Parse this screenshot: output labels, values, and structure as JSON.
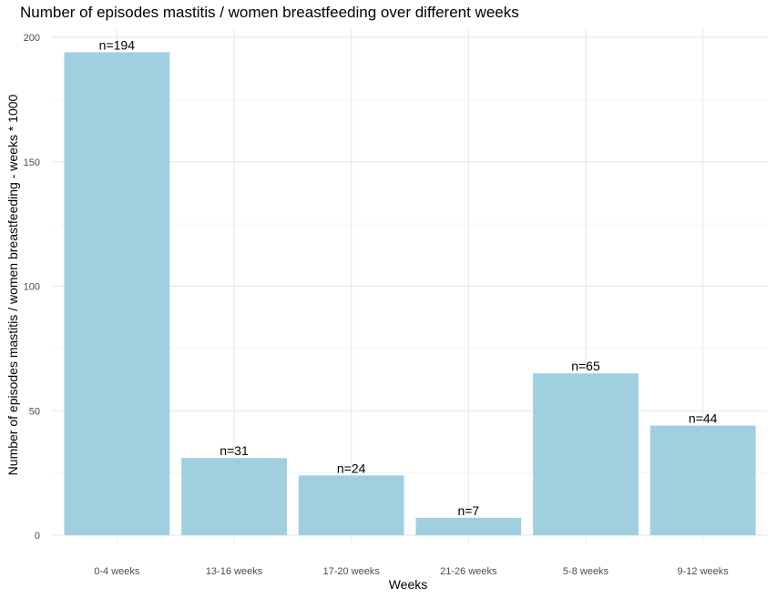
{
  "chart_data": {
    "type": "bar",
    "title": "Number of episodes mastitis / women breastfeeding over different weeks",
    "xlabel": "Weeks",
    "ylabel": "Number of episodes mastitis / women breastfeeding - weeks * 1000",
    "categories": [
      "0-4 weeks",
      "13-16 weeks",
      "17-20 weeks",
      "21-26 weeks",
      "5-8 weeks",
      "9-12 weeks"
    ],
    "values": [
      194,
      31,
      24,
      7,
      65,
      44
    ],
    "data_labels": [
      "n=194",
      "n=31",
      "n=24",
      "n=7",
      "n=65",
      "n=44"
    ],
    "ylim": [
      0,
      200
    ],
    "yticks": [
      0,
      50,
      100,
      150,
      200
    ],
    "bar_color": "#a0d0e0",
    "grid_color": "#ebebeb",
    "grid": true,
    "legend": "none"
  }
}
